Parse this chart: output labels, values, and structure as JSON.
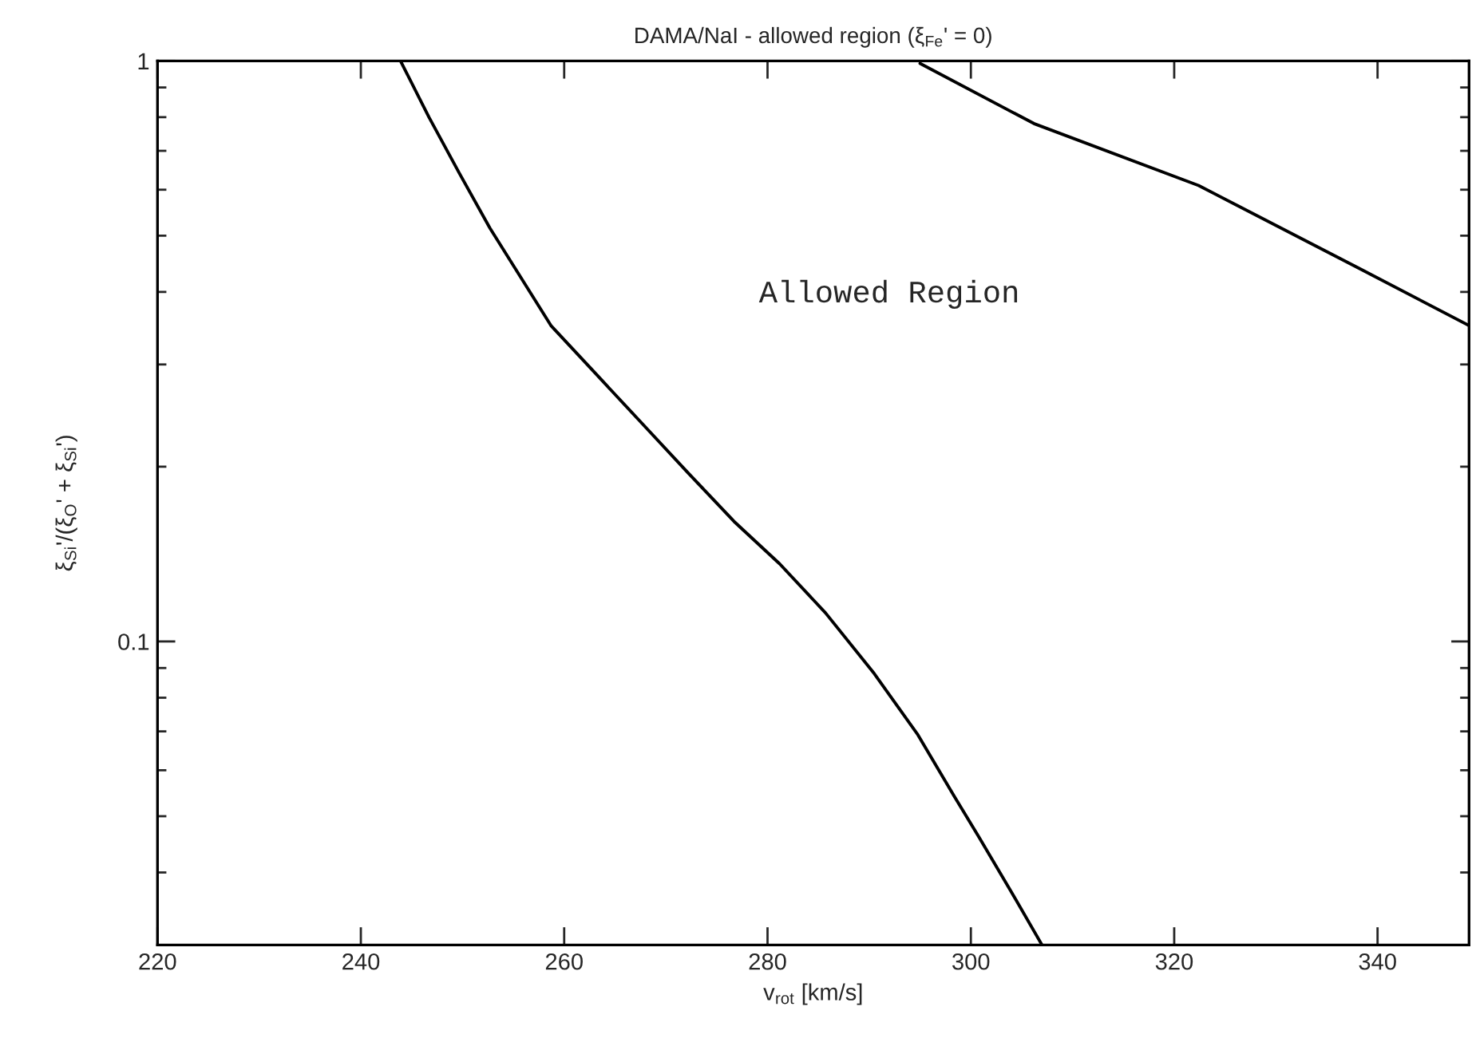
{
  "chart_data": {
    "type": "line",
    "title": "DAMA/NaI - allowed region (ξ$_{Fe}$' = 0)",
    "xlabel": "v$_{rot}$ [km/s]",
    "ylabel": "ξ$_{Si}$'/(ξ$_{O}$' + ξ$_{Si}$')",
    "annotations": [
      "Allowed Region"
    ],
    "series": [
      {
        "color": "#000000",
        "x": [
          243.9,
          246.7,
          249.7,
          252.7,
          258.7,
          263.2,
          267.7,
          272.2,
          276.7,
          281.2,
          285.7,
          290.5,
          294.8,
          298.4,
          300.8,
          303.8,
          307.0
        ],
        "values": [
          1.0,
          0.8,
          0.64,
          0.515,
          0.35,
          0.288,
          0.237,
          0.195,
          0.161,
          0.136,
          0.112,
          0.088,
          0.069,
          0.054,
          0.046,
          0.0375,
          0.03
        ]
      },
      {
        "color": "#000000",
        "x": [
          295.0,
          306.2,
          322.4,
          338.1,
          349.0
        ],
        "values": [
          0.99,
          0.78,
          0.61,
          0.44,
          0.35
        ]
      }
    ],
    "log": "y",
    "xlim": [
      220,
      349
    ],
    "ylim": [
      0.03,
      1
    ],
    "xticks": [
      220,
      240,
      260,
      280,
      300,
      320,
      340
    ],
    "yticks": [
      {
        "value": 0.04,
        "label": null
      },
      {
        "value": 0.05,
        "label": null
      },
      {
        "value": 0.06,
        "label": null
      },
      {
        "value": 0.07,
        "label": null
      },
      {
        "value": 0.08,
        "label": null
      },
      {
        "value": 0.09,
        "label": null
      },
      0.1,
      {
        "value": 0.2,
        "label": null
      },
      {
        "value": 0.3,
        "label": null
      },
      {
        "value": 0.4,
        "label": null
      },
      {
        "value": 0.5,
        "label": null
      },
      {
        "value": 0.6,
        "label": null
      },
      {
        "value": 0.7,
        "label": null
      },
      {
        "value": 0.8,
        "label": null
      },
      {
        "value": 0.9,
        "label": null
      },
      1
    ],
    "grid": false,
    "legend": false,
    "marker": "none",
    "line_style": "solid"
  }
}
